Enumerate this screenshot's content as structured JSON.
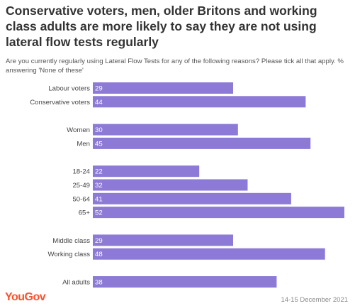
{
  "title": "Conservative voters, men, older Britons and working class adults are more likely to say they are not using lateral flow tests regularly",
  "subtitle": "Are you currently regularly using Lateral Flow Tests for any of the following reasons? Please tick all that apply. % answering 'None of these'",
  "footer": {
    "logo": "YouGov",
    "date": "14-15 December 2021"
  },
  "colors": {
    "bar": "#8c7ad6",
    "value_text": "#ffffff",
    "label_text": "#444444"
  },
  "chart_data": {
    "type": "bar",
    "orientation": "horizontal",
    "xlim": [
      0,
      52
    ],
    "groups": [
      {
        "categories": [
          "Labour voters",
          "Conservative voters"
        ],
        "values": [
          29,
          44
        ]
      },
      {
        "categories": [
          "Women",
          "Men"
        ],
        "values": [
          30,
          45
        ]
      },
      {
        "categories": [
          "18-24",
          "25-49",
          "50-64",
          "65+"
        ],
        "values": [
          22,
          32,
          41,
          52
        ]
      },
      {
        "categories": [
          "Middle class",
          "Working class"
        ],
        "values": [
          29,
          48
        ]
      },
      {
        "categories": [
          "All adults"
        ],
        "values": [
          38
        ]
      }
    ]
  }
}
